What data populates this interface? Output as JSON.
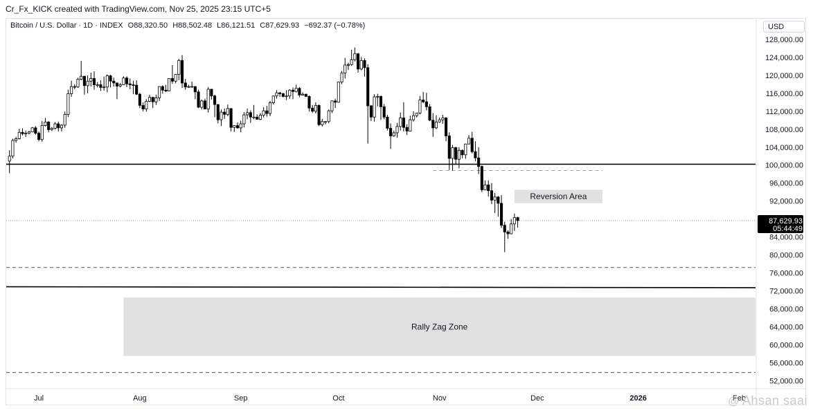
{
  "header": {
    "credit": "Cr_Fx_KICK created with TradingView.com, Nov 25, 2025 23:15 UTC+5"
  },
  "legend": {
    "symbol": "Bitcoin / U.S. Dollar · 1D · INDEX",
    "open": "O88,320.50",
    "high": "H88,502.48",
    "low": "L86,121.51",
    "close": "C87,629.93",
    "change": "−692.37 (−0.78%)"
  },
  "currency_label": "USD",
  "price_tag": {
    "price": "87,629.93",
    "countdown": "05:44:49"
  },
  "watermark": {
    "symbol": "@",
    "text": "Ahsan saai"
  },
  "colors": {
    "up": "#ffffff",
    "down": "#000000",
    "zone_fill": "#e0e0e0",
    "line": "#000000"
  },
  "chart_data": {
    "type": "candlestick",
    "y_axis": {
      "ticks": [
        52000,
        56000,
        60000,
        64000,
        68000,
        72000,
        76000,
        80000,
        84000,
        88000,
        92000,
        96000,
        100000,
        104000,
        108000,
        112000,
        116000,
        120000,
        124000,
        128000
      ],
      "tick_labels": [
        "52,000.00",
        "56,000.00",
        "60,000.00",
        "64,000.00",
        "68,000.00",
        "72,000.00",
        "76,000.00",
        "80,000.00",
        "84,000.00",
        "88,000.00",
        "92,000.00",
        "96,000.00",
        "100,000.00",
        "104,000.00",
        "108,000.00",
        "112,000.00",
        "116,000.00",
        "120,000.00",
        "124,000.00",
        "128,000.00"
      ],
      "range": [
        50500,
        130000
      ]
    },
    "x_axis": {
      "labels": [
        "Jul",
        "Aug",
        "Sep",
        "Oct",
        "Nov",
        "Dec",
        "2026",
        "Feb"
      ],
      "bold_labels": [
        "2026"
      ],
      "day_range": [
        "2025-06-21",
        "2026-02-06"
      ]
    },
    "levels": [
      {
        "name": "resistance-100k",
        "price": 100200,
        "style": "solid"
      },
      {
        "name": "dashed-77k",
        "price": 77200,
        "style": "dashed"
      },
      {
        "name": "support-72k",
        "price": 72900,
        "style": "solid",
        "price_end": 72700
      },
      {
        "name": "dashed-53k",
        "price": 53800,
        "style": "dashed"
      },
      {
        "name": "dashed-99k",
        "price": 98800,
        "style": "dashed",
        "from": "2025-10-30",
        "to": "2025-12-21"
      },
      {
        "name": "last-price-line",
        "price": 87630,
        "style": "dotted"
      }
    ],
    "zones": [
      {
        "label": "Reversion Area",
        "from": "2025-11-24",
        "to": "2025-12-21",
        "low": 91500,
        "high": 94500
      },
      {
        "label": "Rally Zag Zone",
        "from": "2025-07-27",
        "to": "2026-02-06",
        "low": 57500,
        "high": 70500
      }
    ],
    "candles": [
      [
        "2025-06-22",
        100900,
        103300,
        98200,
        102000
      ],
      [
        "2025-06-23",
        102000,
        105900,
        101500,
        105500
      ],
      [
        "2025-06-24",
        105500,
        106300,
        105000,
        105900
      ],
      [
        "2025-06-25",
        105900,
        108100,
        105700,
        107300
      ],
      [
        "2025-06-26",
        107300,
        108200,
        106600,
        107000
      ],
      [
        "2025-06-27",
        107000,
        107700,
        106300,
        107100
      ],
      [
        "2025-06-28",
        107100,
        107600,
        106900,
        107400
      ],
      [
        "2025-06-29",
        107400,
        108500,
        107300,
        108300
      ],
      [
        "2025-06-30",
        108300,
        108700,
        106800,
        107100
      ],
      [
        "2025-07-01",
        107100,
        107500,
        105300,
        105700
      ],
      [
        "2025-07-02",
        105700,
        109800,
        105200,
        108800
      ],
      [
        "2025-07-03",
        108800,
        110500,
        108600,
        109600
      ],
      [
        "2025-07-04",
        109600,
        109800,
        107300,
        107900
      ],
      [
        "2025-07-05",
        107900,
        108500,
        107600,
        108200
      ],
      [
        "2025-07-06",
        108200,
        109600,
        107900,
        109200
      ],
      [
        "2025-07-07",
        109200,
        109700,
        107500,
        108300
      ],
      [
        "2025-07-08",
        108300,
        109100,
        107500,
        108900
      ],
      [
        "2025-07-09",
        108900,
        111900,
        108300,
        111300
      ],
      [
        "2025-07-10",
        111300,
        116800,
        110700,
        115900
      ],
      [
        "2025-07-11",
        115900,
        118800,
        115200,
        117500
      ],
      [
        "2025-07-12",
        117500,
        118000,
        116900,
        117400
      ],
      [
        "2025-07-13",
        117400,
        119500,
        117200,
        119100
      ],
      [
        "2025-07-14",
        119100,
        123200,
        118900,
        119800
      ],
      [
        "2025-07-15",
        119800,
        119900,
        115700,
        117700
      ],
      [
        "2025-07-16",
        117700,
        120000,
        116000,
        118700
      ],
      [
        "2025-07-17",
        118700,
        120600,
        117500,
        119300
      ],
      [
        "2025-07-18",
        119300,
        120900,
        116800,
        117900
      ],
      [
        "2025-07-19",
        117900,
        118500,
        117300,
        117900
      ],
      [
        "2025-07-20",
        117900,
        118900,
        116500,
        117300
      ],
      [
        "2025-07-21",
        117300,
        119700,
        116600,
        117400
      ],
      [
        "2025-07-22",
        117400,
        120200,
        116200,
        119900
      ],
      [
        "2025-07-23",
        119900,
        120100,
        117300,
        118700
      ],
      [
        "2025-07-24",
        118700,
        119500,
        117500,
        118300
      ],
      [
        "2025-07-25",
        118300,
        118400,
        114700,
        117600
      ],
      [
        "2025-07-26",
        117600,
        118300,
        117300,
        117900
      ],
      [
        "2025-07-27",
        117900,
        119800,
        117800,
        119400
      ],
      [
        "2025-07-28",
        119400,
        119800,
        117400,
        118100
      ],
      [
        "2025-07-29",
        118100,
        119300,
        116900,
        117900
      ],
      [
        "2025-07-30",
        117900,
        118800,
        115800,
        117800
      ],
      [
        "2025-07-31",
        117800,
        118900,
        115600,
        115800
      ],
      [
        "2025-08-01",
        115800,
        116100,
        112700,
        113300
      ],
      [
        "2025-08-02",
        113300,
        114000,
        112000,
        112500
      ],
      [
        "2025-08-03",
        112500,
        114700,
        111900,
        114200
      ],
      [
        "2025-08-04",
        114200,
        115700,
        114000,
        115100
      ],
      [
        "2025-08-05",
        115100,
        115100,
        112700,
        114100
      ],
      [
        "2025-08-06",
        114100,
        115700,
        113400,
        115000
      ],
      [
        "2025-08-07",
        115000,
        117600,
        114300,
        117500
      ],
      [
        "2025-08-08",
        117500,
        117800,
        115900,
        116700
      ],
      [
        "2025-08-09",
        116700,
        117900,
        116300,
        116500
      ],
      [
        "2025-08-10",
        116500,
        119300,
        116500,
        119300
      ],
      [
        "2025-08-11",
        119300,
        122300,
        118100,
        118700
      ],
      [
        "2025-08-12",
        118700,
        120300,
        118200,
        120200
      ],
      [
        "2025-08-13",
        120200,
        123700,
        118900,
        123300
      ],
      [
        "2025-08-14",
        123300,
        124500,
        117200,
        118300
      ],
      [
        "2025-08-15",
        118300,
        119200,
        116800,
        117400
      ],
      [
        "2025-08-16",
        117400,
        117900,
        117200,
        117500
      ],
      [
        "2025-08-17",
        117500,
        118600,
        117300,
        117500
      ],
      [
        "2025-08-18",
        117500,
        117600,
        114700,
        116300
      ],
      [
        "2025-08-19",
        116300,
        116800,
        112700,
        112900
      ],
      [
        "2025-08-20",
        112900,
        114600,
        112400,
        114300
      ],
      [
        "2025-08-21",
        114300,
        114800,
        112600,
        112500
      ],
      [
        "2025-08-22",
        112500,
        117400,
        111700,
        116900
      ],
      [
        "2025-08-23",
        116900,
        117000,
        114600,
        115400
      ],
      [
        "2025-08-24",
        115400,
        115700,
        110700,
        113500
      ],
      [
        "2025-08-25",
        113500,
        113600,
        109300,
        110100
      ],
      [
        "2025-08-26",
        110100,
        112400,
        108700,
        111800
      ],
      [
        "2025-08-27",
        111800,
        112600,
        110300,
        111300
      ],
      [
        "2025-08-28",
        111300,
        113500,
        110900,
        112600
      ],
      [
        "2025-08-29",
        112600,
        112700,
        107500,
        108400
      ],
      [
        "2025-08-30",
        108400,
        108900,
        107400,
        108800
      ],
      [
        "2025-08-31",
        108800,
        109500,
        108100,
        108300
      ],
      [
        "2025-09-01",
        108300,
        109900,
        107300,
        109200
      ],
      [
        "2025-09-02",
        109200,
        111800,
        108400,
        111200
      ],
      [
        "2025-09-03",
        111200,
        112600,
        110200,
        111700
      ],
      [
        "2025-09-04",
        111700,
        112200,
        109400,
        110700
      ],
      [
        "2025-09-05",
        110700,
        113400,
        110200,
        110700
      ],
      [
        "2025-09-06",
        110700,
        111300,
        110200,
        110200
      ],
      [
        "2025-09-07",
        110200,
        111600,
        110000,
        111100
      ],
      [
        "2025-09-08",
        111100,
        112900,
        110600,
        112100
      ],
      [
        "2025-09-09",
        112100,
        113200,
        110800,
        111500
      ],
      [
        "2025-09-10",
        111500,
        114300,
        110900,
        113900
      ],
      [
        "2025-09-11",
        113900,
        115500,
        113500,
        115400
      ],
      [
        "2025-09-12",
        115400,
        116700,
        114800,
        116100
      ],
      [
        "2025-09-13",
        116100,
        116300,
        115200,
        115900
      ],
      [
        "2025-09-14",
        115900,
        116100,
        115100,
        115300
      ],
      [
        "2025-09-15",
        115300,
        116700,
        114500,
        115400
      ],
      [
        "2025-09-16",
        115400,
        116900,
        114800,
        116700
      ],
      [
        "2025-09-17",
        116700,
        117300,
        114700,
        116400
      ],
      [
        "2025-09-18",
        116400,
        117900,
        116200,
        117100
      ],
      [
        "2025-09-19",
        117100,
        117400,
        115100,
        115600
      ],
      [
        "2025-09-20",
        115600,
        116200,
        115500,
        115800
      ],
      [
        "2025-09-21",
        115800,
        115900,
        115200,
        115300
      ],
      [
        "2025-09-22",
        115300,
        115500,
        112000,
        112700
      ],
      [
        "2025-09-23",
        112700,
        113400,
        111600,
        112000
      ],
      [
        "2025-09-24",
        112000,
        114000,
        111500,
        113300
      ],
      [
        "2025-09-25",
        113300,
        113500,
        108700,
        109000
      ],
      [
        "2025-09-26",
        109000,
        110300,
        108600,
        109700
      ],
      [
        "2025-09-27",
        109700,
        109800,
        109100,
        109700
      ],
      [
        "2025-09-28",
        109700,
        112400,
        109300,
        112100
      ],
      [
        "2025-09-29",
        112100,
        114400,
        111600,
        114300
      ],
      [
        "2025-09-30",
        114300,
        114800,
        112700,
        114000
      ],
      [
        "2025-10-01",
        114000,
        118600,
        113900,
        118500
      ],
      [
        "2025-10-02",
        118500,
        121000,
        118000,
        120500
      ],
      [
        "2025-10-03",
        120500,
        123900,
        119300,
        122300
      ],
      [
        "2025-10-04",
        122300,
        122800,
        121200,
        122400
      ],
      [
        "2025-10-05",
        122400,
        125700,
        122100,
        123500
      ],
      [
        "2025-10-06",
        123500,
        126200,
        123100,
        124800
      ],
      [
        "2025-10-07",
        124800,
        125000,
        120600,
        121400
      ],
      [
        "2025-10-08",
        121400,
        124100,
        121100,
        123300
      ],
      [
        "2025-10-09",
        123300,
        123800,
        119700,
        121700
      ],
      [
        "2025-10-10",
        121700,
        122500,
        104800,
        113200
      ],
      [
        "2025-10-11",
        113200,
        113400,
        109800,
        110700
      ],
      [
        "2025-10-12",
        110700,
        115800,
        109700,
        115200
      ],
      [
        "2025-10-13",
        115200,
        115900,
        113100,
        115300
      ],
      [
        "2025-10-14",
        115300,
        115500,
        110100,
        113000
      ],
      [
        "2025-10-15",
        113000,
        113600,
        110200,
        110700
      ],
      [
        "2025-10-16",
        110700,
        111200,
        107700,
        108200
      ],
      [
        "2025-10-17",
        108200,
        109300,
        103600,
        106500
      ],
      [
        "2025-10-18",
        106500,
        107700,
        106300,
        107200
      ],
      [
        "2025-10-19",
        107200,
        109400,
        106100,
        108600
      ],
      [
        "2025-10-20",
        108600,
        111700,
        107700,
        110500
      ],
      [
        "2025-10-21",
        110500,
        114000,
        107500,
        108400
      ],
      [
        "2025-10-22",
        108400,
        109100,
        106700,
        107600
      ],
      [
        "2025-10-23",
        107600,
        111000,
        107500,
        110100
      ],
      [
        "2025-10-24",
        110100,
        112000,
        109700,
        111000
      ],
      [
        "2025-10-25",
        111000,
        111600,
        110600,
        111600
      ],
      [
        "2025-10-26",
        111600,
        115400,
        111300,
        114500
      ],
      [
        "2025-10-27",
        114500,
        116300,
        113800,
        114100
      ],
      [
        "2025-10-28",
        114100,
        116100,
        112200,
        113000
      ],
      [
        "2025-10-29",
        113000,
        113600,
        109800,
        110000
      ],
      [
        "2025-10-30",
        110000,
        111600,
        106300,
        108300
      ],
      [
        "2025-10-31",
        108300,
        111100,
        108000,
        109600
      ],
      [
        "2025-11-01",
        109600,
        110600,
        109400,
        110100
      ],
      [
        "2025-11-02",
        110100,
        111200,
        109200,
        110500
      ],
      [
        "2025-11-03",
        110500,
        110700,
        105300,
        106500
      ],
      [
        "2025-11-04",
        106500,
        107300,
        98900,
        101500
      ],
      [
        "2025-11-05",
        101500,
        104500,
        98800,
        103900
      ],
      [
        "2025-11-06",
        103900,
        104100,
        100300,
        101300
      ],
      [
        "2025-11-07",
        101300,
        104000,
        99300,
        103300
      ],
      [
        "2025-11-08",
        103300,
        103500,
        101500,
        102300
      ],
      [
        "2025-11-09",
        102300,
        104800,
        101400,
        104700
      ],
      [
        "2025-11-10",
        104700,
        106700,
        104700,
        106000
      ],
      [
        "2025-11-11",
        106000,
        107400,
        102600,
        103000
      ],
      [
        "2025-11-12",
        103000,
        105300,
        100900,
        101600
      ],
      [
        "2025-11-13",
        101600,
        104000,
        98000,
        99700
      ],
      [
        "2025-11-14",
        99700,
        99900,
        94000,
        94500
      ],
      [
        "2025-11-15",
        94500,
        96600,
        94500,
        95600
      ],
      [
        "2025-11-16",
        95600,
        96600,
        93000,
        94300
      ],
      [
        "2025-11-17",
        94300,
        96000,
        91300,
        92200
      ],
      [
        "2025-11-18",
        92200,
        93800,
        89300,
        92900
      ],
      [
        "2025-11-19",
        92900,
        93100,
        88500,
        91500
      ],
      [
        "2025-11-20",
        91500,
        93300,
        86000,
        86600
      ],
      [
        "2025-11-21",
        86600,
        87400,
        80600,
        85100
      ],
      [
        "2025-11-22",
        85100,
        85500,
        83600,
        84700
      ],
      [
        "2025-11-23",
        84700,
        88000,
        84600,
        86900
      ],
      [
        "2025-11-24",
        86900,
        89200,
        85300,
        88300
      ],
      [
        "2025-11-25",
        88320,
        88502,
        86121,
        87630
      ]
    ]
  }
}
